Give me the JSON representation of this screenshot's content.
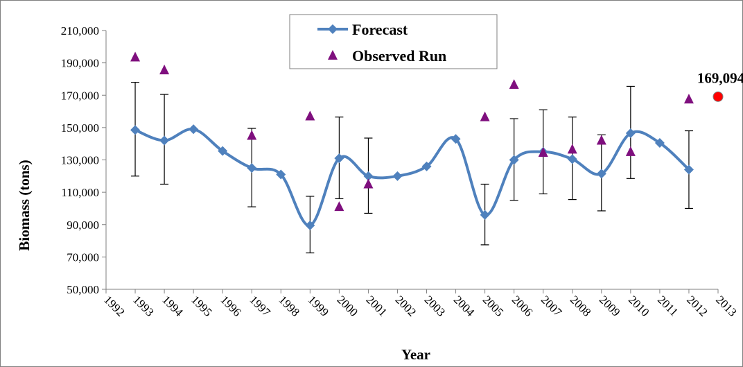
{
  "chart_data": {
    "type": "line",
    "xlabel": "Year",
    "ylabel": "Biomass (tons)",
    "ylim": [
      50000,
      210000
    ],
    "yticks": [
      50000,
      70000,
      90000,
      110000,
      130000,
      150000,
      170000,
      190000,
      210000
    ],
    "ytick_labels": [
      "50,000",
      "70,000",
      "90,000",
      "110,000",
      "130,000",
      "150,000",
      "170,000",
      "190,000",
      "210,000"
    ],
    "categories": [
      "1992",
      "1993",
      "1994",
      "1995",
      "1996",
      "1997",
      "1998",
      "1999",
      "2000",
      "2001",
      "2002",
      "2003",
      "2004",
      "2005",
      "2006",
      "2007",
      "2008",
      "2009",
      "2010",
      "2011",
      "2012",
      "2013"
    ],
    "grid": false,
    "legend_position": "top-center",
    "series": [
      {
        "name": "Forecast",
        "color": "#4f81bd",
        "marker": "diamond",
        "line": "smooth",
        "x": [
          "1993",
          "1994",
          "1995",
          "1996",
          "1997",
          "1998",
          "1999",
          "2000",
          "2001",
          "2002",
          "2003",
          "2004",
          "2005",
          "2006",
          "2007",
          "2008",
          "2009",
          "2010",
          "2011",
          "2012"
        ],
        "values": [
          148500,
          142000,
          149000,
          135500,
          125000,
          121000,
          89500,
          131000,
          120000,
          120000,
          126000,
          143000,
          96000,
          130000,
          135000,
          130500,
          121500,
          146500,
          140500,
          124000
        ],
        "error_low": [
          120000,
          115000,
          null,
          null,
          101000,
          null,
          72500,
          106000,
          97000,
          null,
          null,
          null,
          77500,
          105000,
          109000,
          105500,
          98500,
          118500,
          null,
          100000
        ],
        "error_high": [
          178000,
          170500,
          null,
          null,
          149500,
          null,
          107500,
          156500,
          143500,
          null,
          null,
          null,
          115000,
          155500,
          161000,
          156500,
          145500,
          175500,
          null,
          148000
        ]
      },
      {
        "name": "Observed Run",
        "color": "#7f0f7e",
        "marker": "triangle",
        "line": "none",
        "x": [
          "1993",
          "1994",
          "1997",
          "1999",
          "2000",
          "2001",
          "2005",
          "2006",
          "2007",
          "2008",
          "2009",
          "2010",
          "2012"
        ],
        "values": [
          193500,
          185500,
          145000,
          157000,
          101000,
          115000,
          156500,
          176500,
          134500,
          136500,
          142000,
          135000,
          167500
        ]
      }
    ],
    "annotations": [
      {
        "x": "2013",
        "value": 169094,
        "text": "169,094",
        "marker": "circle",
        "color": "#ff0000"
      }
    ]
  }
}
